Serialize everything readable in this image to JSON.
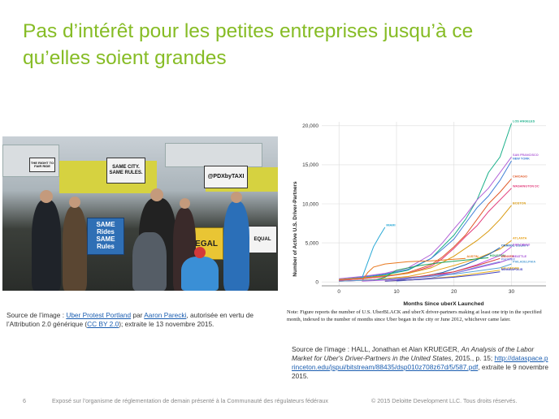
{
  "slide": {
    "title_line1": "Pas d’intérêt pour les petites entreprises jusqu’à ce",
    "title_line2": "qu’elles soient grandes",
    "page_number": "6",
    "footer_note": "Exposé sur l’organisme de réglementation de demain présenté à la Communauté des régulateurs fédéraux",
    "copyright": "© 2015 Deloitte Development LLC. Tous droits réservés."
  },
  "photo": {
    "signs": [
      "THE RIGHT TO FAIR RIDE",
      "SAME CITY. SAME RULES.",
      "@PDXbyTAXI",
      "SAME Rides SAME Rules",
      "LEGAL",
      "EQUAL"
    ]
  },
  "photo_caption": {
    "prefix": "Source de l’image : ",
    "link1": "Uber Protest Portland",
    "by": " par ",
    "link2": "Aaron Parecki",
    "middle": ", autorisée en vertu de l’Attribution 2.0 générique (",
    "link3": "CC BY 2.0",
    "suffix": "); extraite le 13 novembre 2015."
  },
  "source_caption": {
    "prefix": "Source de l’image : HALL, Jonathan et Alan KRUEGER, ",
    "title": "An Analysis of the Labor Market for Uber's Driver-Partners in the United States",
    "middle": ", 2015., p. 15; ",
    "link": "http://dataspace.princeton.edu/jspui/bitstream/88435/dsp010z708z67d/5/587.pdf",
    "suffix": ", extraite le 9 novembre 2015."
  },
  "chart_data": {
    "type": "line",
    "xlabel": "Months Since uberX Launched",
    "ylabel": "Number of Active U.S. Driver-Partners",
    "xlim": [
      -3,
      36
    ],
    "ylim": [
      -500,
      20500
    ],
    "x_ticks": [
      0,
      10,
      20,
      30
    ],
    "y_ticks": [
      0,
      5000,
      10000,
      15000,
      20000
    ],
    "y_tick_labels": [
      "0",
      "5,000",
      "10,000",
      "15,000",
      "20,000"
    ],
    "note": "Note: Figure reports the number of U.S. UberBLACK and uberX driver-partners making at least one trip in the specified month, indexed to the number of months since Uber began in the city or June 2012, whichever came later.",
    "series": [
      {
        "name": "LOS ANGELES",
        "color": "#1bb08a",
        "x": [
          0,
          4,
          8,
          12,
          16,
          18,
          20,
          22,
          24,
          26,
          28,
          30
        ],
        "y": [
          200,
          500,
          900,
          1500,
          3000,
          4500,
          6000,
          8000,
          10500,
          14000,
          16000,
          20300
        ]
      },
      {
        "name": "SAN FRANCISCO",
        "color": "#b05fd6",
        "x": [
          0,
          4,
          8,
          12,
          16,
          18,
          20,
          22,
          24,
          26,
          28,
          30
        ],
        "y": [
          400,
          700,
          1100,
          1800,
          3500,
          5000,
          6800,
          8500,
          10500,
          12000,
          14000,
          16000
        ]
      },
      {
        "name": "NEW YORK",
        "color": "#3f7fd6",
        "x": [
          0,
          4,
          8,
          12,
          16,
          18,
          20,
          22,
          24,
          26,
          28,
          30
        ],
        "y": [
          300,
          600,
          1000,
          1600,
          3000,
          4200,
          5500,
          7500,
          9500,
          11000,
          13000,
          15500
        ]
      },
      {
        "name": "CHICAGO",
        "color": "#e05a2a",
        "x": [
          0,
          4,
          8,
          12,
          16,
          18,
          20,
          22,
          24,
          26,
          28,
          30
        ],
        "y": [
          200,
          400,
          700,
          1200,
          2200,
          3200,
          4500,
          6000,
          8000,
          10000,
          11500,
          13200
        ]
      },
      {
        "name": "WASHINGTON DC",
        "color": "#e23b7a",
        "x": [
          0,
          4,
          8,
          12,
          16,
          18,
          20,
          22,
          24,
          26,
          28,
          30
        ],
        "y": [
          200,
          400,
          700,
          1100,
          2000,
          3000,
          4300,
          5800,
          7200,
          9000,
          10500,
          12000
        ]
      },
      {
        "name": "BOSTON",
        "color": "#d99a10",
        "x": [
          0,
          4,
          8,
          12,
          16,
          18,
          20,
          22,
          24,
          26,
          28,
          30
        ],
        "y": [
          300,
          500,
          800,
          1100,
          1800,
          2500,
          3300,
          4300,
          5300,
          6500,
          8000,
          9800
        ]
      },
      {
        "name": "MIAMI",
        "color": "#2aa9d6",
        "x": [
          4,
          5,
          6,
          7,
          8
        ],
        "y": [
          500,
          2500,
          4500,
          5800,
          7000
        ]
      },
      {
        "name": "ATLANTA",
        "color": "#e6a21a",
        "x": [
          0,
          6,
          12,
          16,
          20,
          24,
          28,
          30
        ],
        "y": [
          100,
          300,
          700,
          1300,
          2100,
          3000,
          4200,
          5300
        ]
      },
      {
        "name": "ORANGE COUNTY",
        "color": "#1a5fb0",
        "x": [
          10,
          14,
          18,
          22,
          26,
          28
        ],
        "y": [
          200,
          600,
          1200,
          2200,
          3500,
          4400
        ]
      },
      {
        "name": "SAN DIEGO",
        "color": "#c05ae0",
        "x": [
          4,
          10,
          16,
          20,
          24,
          28,
          30
        ],
        "y": [
          100,
          300,
          700,
          1300,
          2200,
          3400,
          4500
        ]
      },
      {
        "name": "HOUSTON",
        "color": "#22a35a",
        "x": [
          6,
          8,
          10,
          14,
          18,
          22,
          26
        ],
        "y": [
          200,
          600,
          1500,
          2100,
          2500,
          2800,
          3100
        ]
      },
      {
        "name": "AUSTIN",
        "color": "#e8781e",
        "x": [
          4,
          5,
          6,
          8,
          12,
          16,
          20,
          22
        ],
        "y": [
          100,
          1200,
          1900,
          2300,
          2600,
          2700,
          2900,
          3000
        ]
      },
      {
        "name": "DENVER",
        "color": "#d63a3a",
        "x": [
          0,
          8,
          14,
          20,
          24,
          28
        ],
        "y": [
          100,
          300,
          700,
          1300,
          2100,
          3000
        ]
      },
      {
        "name": "SEATTLE",
        "color": "#a44fd6",
        "x": [
          0,
          8,
          14,
          20,
          24,
          28,
          30
        ],
        "y": [
          100,
          300,
          600,
          1100,
          1800,
          2500,
          3000
        ]
      },
      {
        "name": "PHOENIX",
        "color": "#7b8ee0",
        "x": [
          10,
          16,
          20,
          24,
          28
        ],
        "y": [
          100,
          500,
          1100,
          1900,
          2600
        ]
      },
      {
        "name": "PHILADELPHIA",
        "color": "#5aa3d6",
        "x": [
          0,
          8,
          14,
          20,
          24,
          28,
          30
        ],
        "y": [
          100,
          300,
          600,
          1000,
          1400,
          1800,
          2300
        ]
      },
      {
        "name": "BALTIMORE",
        "color": "#e8b21e",
        "x": [
          8,
          14,
          20,
          24,
          28
        ],
        "y": [
          100,
          300,
          700,
          1100,
          1500
        ]
      },
      {
        "name": "MINNEAPOLIS",
        "color": "#4040c0",
        "x": [
          8,
          14,
          20,
          24,
          28
        ],
        "y": [
          100,
          300,
          600,
          900,
          1300
        ]
      }
    ]
  }
}
